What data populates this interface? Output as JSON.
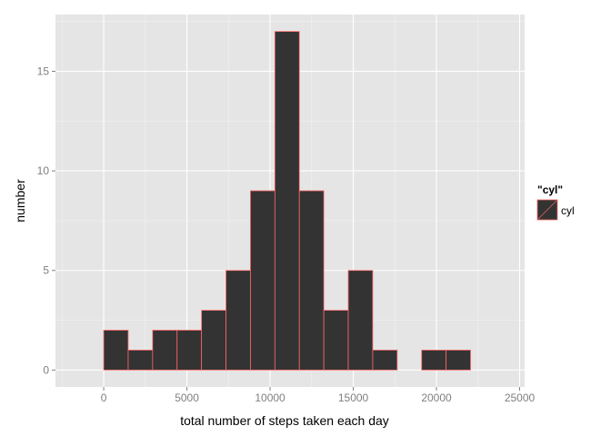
{
  "chart_data": {
    "type": "bar",
    "title": "",
    "xlabel": "total number of steps taken each day",
    "ylabel": "number",
    "bin_width": 1470,
    "bins": [
      {
        "start": -1470,
        "end": 0,
        "count": 0
      },
      {
        "start": 0,
        "end": 1470,
        "count": 2
      },
      {
        "start": 1470,
        "end": 2940,
        "count": 1
      },
      {
        "start": 2940,
        "end": 4410,
        "count": 2
      },
      {
        "start": 4410,
        "end": 5880,
        "count": 2
      },
      {
        "start": 5880,
        "end": 7350,
        "count": 3
      },
      {
        "start": 7350,
        "end": 8820,
        "count": 5
      },
      {
        "start": 8820,
        "end": 10290,
        "count": 9
      },
      {
        "start": 10290,
        "end": 11760,
        "count": 17
      },
      {
        "start": 11760,
        "end": 13230,
        "count": 9
      },
      {
        "start": 13230,
        "end": 14700,
        "count": 3
      },
      {
        "start": 14700,
        "end": 16170,
        "count": 5
      },
      {
        "start": 16170,
        "end": 17640,
        "count": 1
      },
      {
        "start": 17640,
        "end": 19110,
        "count": 0
      },
      {
        "start": 19110,
        "end": 20580,
        "count": 1
      },
      {
        "start": 20580,
        "end": 22050,
        "count": 1
      },
      {
        "start": 22050,
        "end": 23520,
        "count": 0
      }
    ],
    "xlim": [
      -2900,
      25300
    ],
    "ylim": [
      -0.85,
      17.85
    ],
    "x_ticks": [
      0,
      5000,
      10000,
      15000,
      20000,
      25000
    ],
    "x_tick_labels": [
      "0",
      "5000",
      "10000",
      "15000",
      "20000",
      "25000"
    ],
    "y_ticks": [
      0,
      5,
      10,
      15
    ],
    "y_tick_labels": [
      "0",
      "5",
      "10",
      "15"
    ],
    "grid": true,
    "legend": {
      "title": "\"cyl\"",
      "label": "cyl",
      "position": "right"
    },
    "colors": {
      "panel_background": "#e5e5e5",
      "grid_major": "#ffffff",
      "grid_minor": "#f2f2f2",
      "bar_fill": "#333333",
      "bar_outline": "#ff6666",
      "tick_text": "#7f7f7f",
      "tick_mark": "#7f7f7f"
    }
  }
}
